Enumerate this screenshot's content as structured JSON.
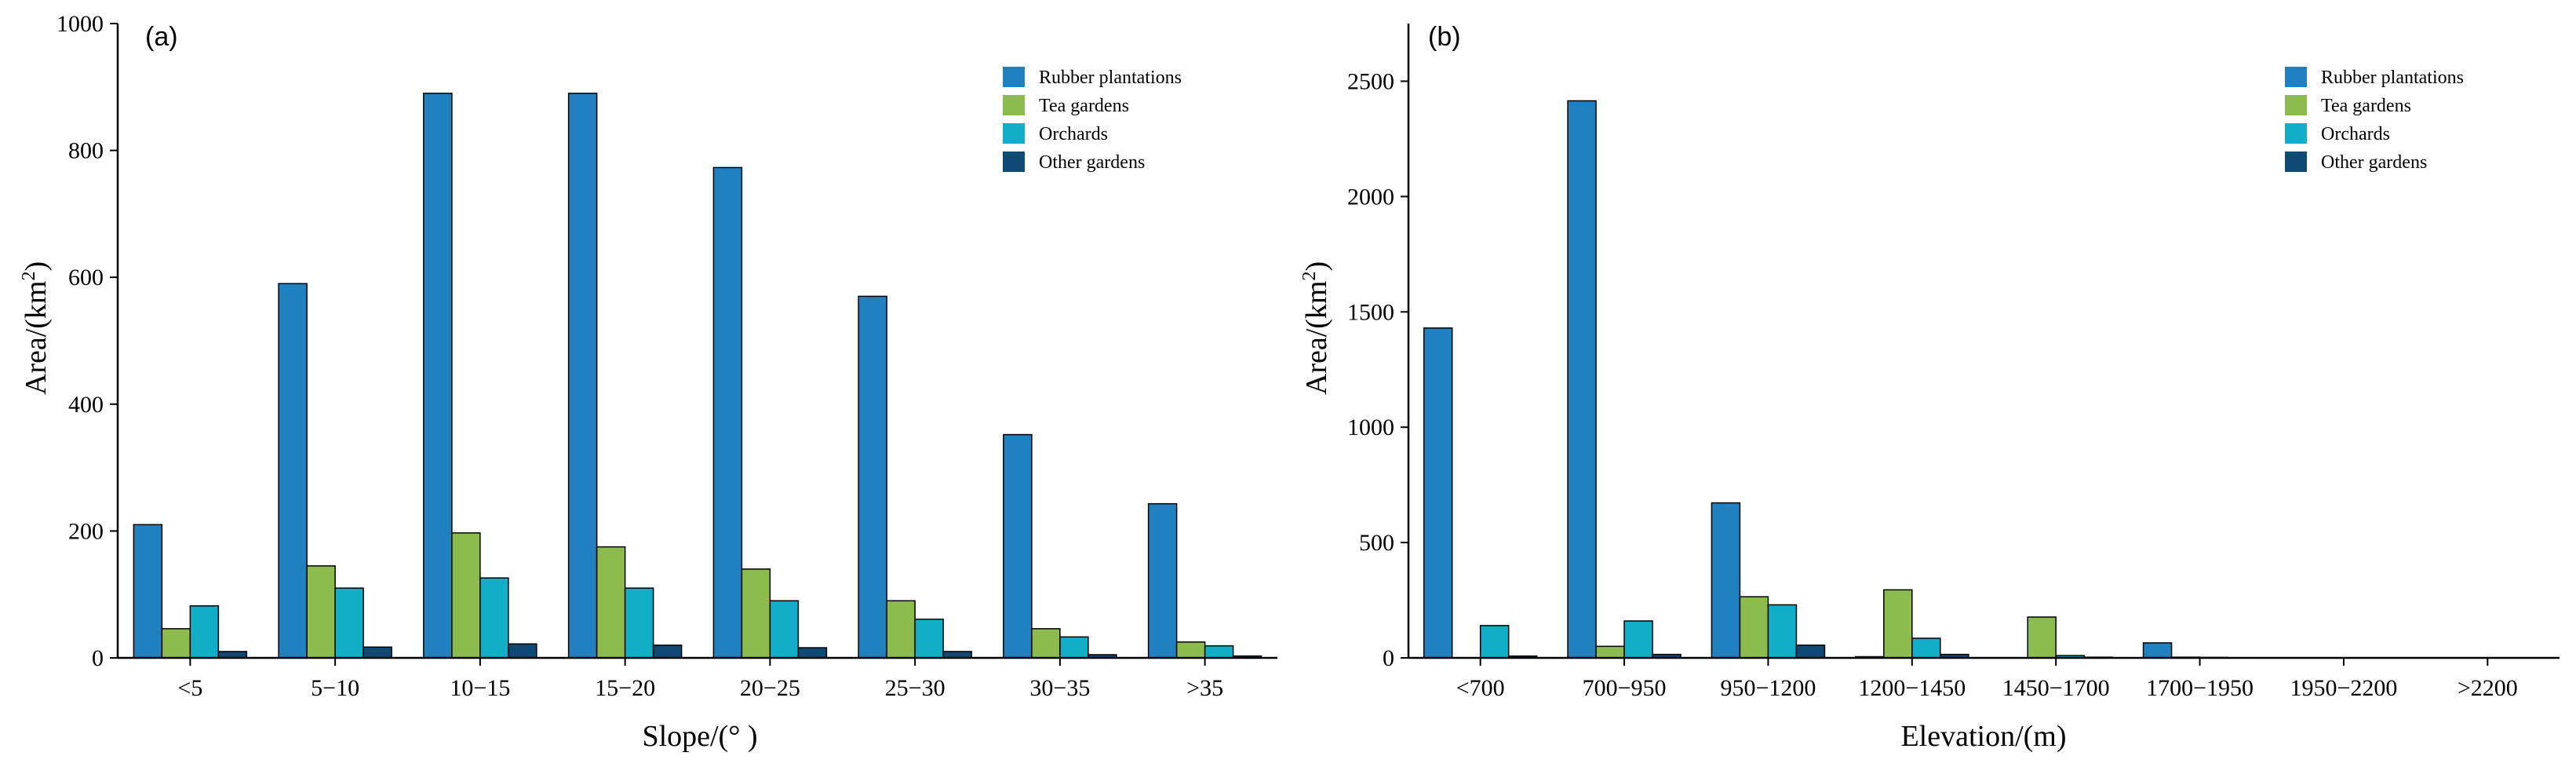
{
  "colors": {
    "rubber": "#2180c0",
    "tea": "#8cbc4e",
    "orchards": "#12adc6",
    "other": "#0f4a74"
  },
  "chart_data": [
    {
      "type": "bar",
      "panel_label": "(a)",
      "xlabel": "Slope/(° )",
      "ylabel": "Area/(km²)",
      "ylabel_main": "Area/(km",
      "ylabel_sup": "2",
      "ylabel_close": ")",
      "ylim": [
        0,
        1000
      ],
      "yticks": [
        0,
        200,
        400,
        600,
        800,
        1000
      ],
      "legend_position": "top-right",
      "categories": [
        "<5",
        "5−10",
        "10−15",
        "15−20",
        "20−25",
        "25−30",
        "30−35",
        ">35"
      ],
      "series": [
        {
          "name": "Rubber plantations",
          "color_key": "rubber",
          "values": [
            210,
            590,
            890,
            890,
            773,
            570,
            352,
            243
          ]
        },
        {
          "name": "Tea gardens",
          "color_key": "tea",
          "values": [
            46,
            145,
            197,
            175,
            140,
            90,
            46,
            25
          ]
        },
        {
          "name": "Orchards",
          "color_key": "orchards",
          "values": [
            82,
            110,
            126,
            110,
            90,
            61,
            33,
            19
          ]
        },
        {
          "name": "Other gardens",
          "color_key": "other",
          "values": [
            10,
            17,
            22,
            20,
            16,
            10,
            5,
            3
          ]
        }
      ]
    },
    {
      "type": "bar",
      "panel_label": "(b)",
      "xlabel": "Elevation/(m)",
      "ylabel": "Area/(km²)",
      "ylabel_main": "Area/(km",
      "ylabel_sup": "2",
      "ylabel_close": ")",
      "ylim": [
        0,
        2750
      ],
      "yticks": [
        0,
        500,
        1000,
        1500,
        2000,
        2500
      ],
      "legend_position": "top-right",
      "categories": [
        "<700",
        "700−950",
        "950−1200",
        "1200−1450",
        "1450−1700",
        "1700−1950",
        "1950−2200",
        ">2200"
      ],
      "series": [
        {
          "name": "Rubber plantations",
          "color_key": "rubber",
          "values": [
            1430,
            2415,
            672,
            5,
            0,
            65,
            0,
            0
          ]
        },
        {
          "name": "Tea gardens",
          "color_key": "tea",
          "values": [
            0,
            50,
            265,
            295,
            177,
            3,
            0,
            0
          ]
        },
        {
          "name": "Orchards",
          "color_key": "orchards",
          "values": [
            140,
            160,
            230,
            85,
            10,
            2,
            0,
            0
          ]
        },
        {
          "name": "Other gardens",
          "color_key": "other",
          "values": [
            8,
            15,
            55,
            15,
            3,
            1,
            0,
            0
          ]
        }
      ]
    }
  ]
}
